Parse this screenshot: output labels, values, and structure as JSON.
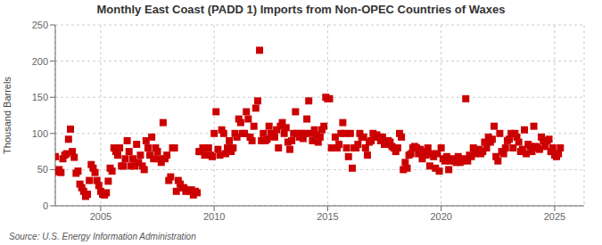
{
  "chart_data": {
    "type": "scatter",
    "title": "Monthly East Coast (PADD 1) Imports from Non-OPEC Countries of Waxes",
    "ylabel": "Thousand Barrels",
    "annotations": [
      "Source: U.S. Energy Information Administration"
    ],
    "color": "#cc0000",
    "marker": "square",
    "grid": true,
    "xlim": [
      2003.0,
      2026.3
    ],
    "ylim": [
      0,
      250
    ],
    "xticks": [
      2005,
      2010,
      2015,
      2020,
      2025
    ],
    "yticks": [
      0,
      50,
      100,
      150,
      200,
      250
    ],
    "x": [
      2003.0,
      2003.083,
      2003.167,
      2003.25,
      2003.333,
      2003.417,
      2003.5,
      2003.583,
      2003.667,
      2003.75,
      2003.833,
      2003.917,
      2004.0,
      2004.083,
      2004.167,
      2004.25,
      2004.333,
      2004.417,
      2004.5,
      2004.583,
      2004.667,
      2004.75,
      2004.833,
      2004.917,
      2005.0,
      2005.083,
      2005.167,
      2005.25,
      2005.333,
      2005.417,
      2005.5,
      2005.583,
      2005.667,
      2005.75,
      2005.833,
      2005.917,
      2006.0,
      2006.083,
      2006.167,
      2006.25,
      2006.333,
      2006.417,
      2006.5,
      2006.583,
      2006.667,
      2006.75,
      2006.833,
      2006.917,
      2007.0,
      2007.083,
      2007.167,
      2007.25,
      2007.333,
      2007.417,
      2007.5,
      2007.583,
      2007.667,
      2007.75,
      2007.833,
      2007.917,
      2008.0,
      2008.083,
      2008.167,
      2008.25,
      2008.333,
      2008.417,
      2008.5,
      2008.583,
      2008.667,
      2008.75,
      2008.833,
      2008.917,
      2009.0,
      2009.083,
      2009.167,
      2009.25,
      2009.333,
      2009.417,
      2009.5,
      2009.583,
      2009.667,
      2009.75,
      2009.833,
      2009.917,
      2010.0,
      2010.083,
      2010.167,
      2010.25,
      2010.333,
      2010.417,
      2010.5,
      2010.583,
      2010.667,
      2010.75,
      2010.833,
      2010.917,
      2011.0,
      2011.083,
      2011.167,
      2011.25,
      2011.333,
      2011.417,
      2011.5,
      2011.583,
      2011.667,
      2011.75,
      2011.833,
      2011.917,
      2012.0,
      2012.083,
      2012.167,
      2012.25,
      2012.333,
      2012.417,
      2012.5,
      2012.583,
      2012.667,
      2012.75,
      2012.833,
      2012.917,
      2013.0,
      2013.083,
      2013.167,
      2013.25,
      2013.333,
      2013.417,
      2013.5,
      2013.583,
      2013.667,
      2013.75,
      2013.833,
      2013.917,
      2014.0,
      2014.083,
      2014.167,
      2014.25,
      2014.333,
      2014.417,
      2014.5,
      2014.583,
      2014.667,
      2014.75,
      2014.833,
      2014.917,
      2015.0,
      2015.083,
      2015.167,
      2015.25,
      2015.333,
      2015.417,
      2015.5,
      2015.583,
      2015.667,
      2015.75,
      2015.833,
      2015.917,
      2016.0,
      2016.083,
      2016.167,
      2016.25,
      2016.333,
      2016.417,
      2016.5,
      2016.583,
      2016.667,
      2016.75,
      2016.833,
      2016.917,
      2017.0,
      2017.083,
      2017.167,
      2017.25,
      2017.333,
      2017.417,
      2017.5,
      2017.583,
      2017.667,
      2017.75,
      2017.833,
      2017.917,
      2018.0,
      2018.083,
      2018.167,
      2018.25,
      2018.333,
      2018.417,
      2018.5,
      2018.583,
      2018.667,
      2018.75,
      2018.833,
      2018.917,
      2019.0,
      2019.083,
      2019.167,
      2019.25,
      2019.333,
      2019.417,
      2019.5,
      2019.583,
      2019.667,
      2019.75,
      2019.833,
      2019.917,
      2020.0,
      2020.083,
      2020.167,
      2020.25,
      2020.333,
      2020.417,
      2020.5,
      2020.583,
      2020.667,
      2020.75,
      2020.833,
      2020.917,
      2021.0,
      2021.083,
      2021.167,
      2021.25,
      2021.333,
      2021.417,
      2021.5,
      2021.583,
      2021.667,
      2021.75,
      2021.833,
      2021.917,
      2022.0,
      2022.083,
      2022.167,
      2022.25,
      2022.333,
      2022.417,
      2022.5,
      2022.583,
      2022.667,
      2022.75,
      2022.833,
      2022.917,
      2023.0,
      2023.083,
      2023.167,
      2023.25,
      2023.333,
      2023.417,
      2023.5,
      2023.583,
      2023.667,
      2023.75,
      2023.833,
      2023.917,
      2024.0,
      2024.083,
      2024.167,
      2024.25,
      2024.333,
      2024.417,
      2024.5,
      2024.583,
      2024.667,
      2024.75,
      2024.833,
      2024.917,
      2025.0,
      2025.083,
      2025.167,
      2025.25
    ],
    "values": [
      68,
      47,
      50,
      46,
      65,
      70,
      72,
      92,
      106,
      75,
      67,
      45,
      48,
      30,
      25,
      20,
      13,
      16,
      35,
      57,
      52,
      46,
      35,
      28,
      20,
      16,
      15,
      18,
      34,
      52,
      48,
      80,
      75,
      70,
      80,
      55,
      55,
      65,
      90,
      75,
      55,
      65,
      55,
      85,
      60,
      70,
      55,
      50,
      90,
      80,
      70,
      95,
      65,
      80,
      75,
      65,
      60,
      115,
      65,
      70,
      35,
      40,
      80,
      80,
      20,
      35,
      30,
      25,
      25,
      20,
      22,
      20,
      22,
      15,
      20,
      18,
      75,
      75,
      80,
      70,
      80,
      80,
      70,
      68,
      100,
      130,
      78,
      70,
      105,
      100,
      72,
      80,
      90,
      75,
      80,
      100,
      95,
      120,
      115,
      100,
      100,
      130,
      120,
      95,
      90,
      110,
      135,
      145,
      215,
      90,
      100,
      90,
      92,
      110,
      100,
      96,
      95,
      105,
      80,
      110,
      115,
      100,
      108,
      88,
      78,
      90,
      100,
      130,
      100,
      95,
      100,
      93,
      100,
      120,
      145,
      100,
      90,
      105,
      98,
      88,
      95,
      105,
      110,
      150,
      148,
      148,
      80,
      80,
      95,
      80,
      85,
      100,
      115,
      100,
      80,
      68,
      100,
      52,
      80,
      80,
      85,
      100,
      95,
      95,
      80,
      70,
      88,
      90,
      100,
      95,
      98,
      95,
      90,
      95,
      85,
      85,
      90,
      88,
      82,
      80,
      75,
      80,
      100,
      95,
      50,
      60,
      52,
      70,
      72,
      80,
      82,
      80,
      72,
      78,
      65,
      75,
      70,
      80,
      55,
      72,
      68,
      52,
      72,
      48,
      80,
      65,
      62,
      68,
      50,
      62,
      65,
      62,
      60,
      68,
      60,
      62,
      65,
      148,
      62,
      70,
      68,
      80,
      72,
      75,
      78,
      72,
      75,
      88,
      80,
      95,
      88,
      92,
      110,
      68,
      62,
      100,
      75,
      72,
      80,
      90,
      92,
      100,
      80,
      100,
      95,
      88,
      75,
      78,
      105,
      72,
      85,
      82,
      75,
      110,
      82,
      80,
      78,
      95,
      90,
      82,
      90,
      92,
      75,
      80,
      70,
      68,
      72,
      80
    ]
  }
}
